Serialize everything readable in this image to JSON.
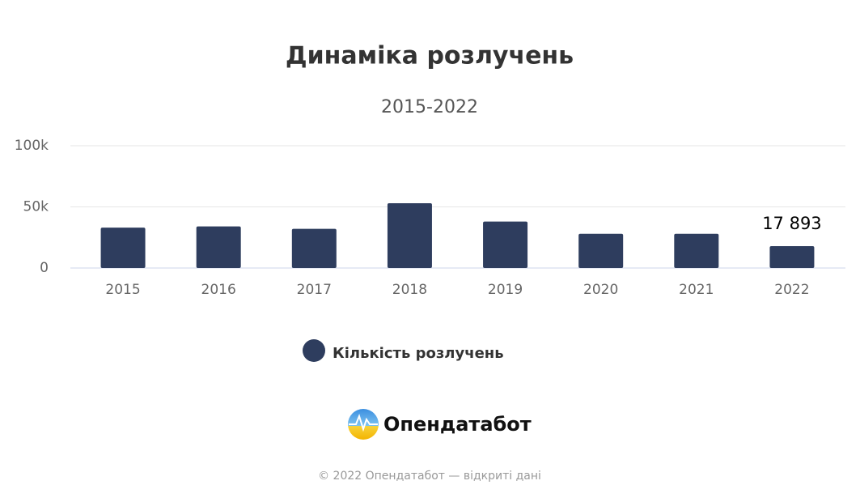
{
  "chart_data": {
    "type": "bar",
    "title": "Динаміка розлучень",
    "subtitle": "2015-2022",
    "categories": [
      "2015",
      "2016",
      "2017",
      "2018",
      "2019",
      "2020",
      "2021",
      "2022"
    ],
    "series": [
      {
        "name": "Кількість розлучень",
        "color": "#2e3d5e",
        "values": [
          33000,
          34000,
          32000,
          53000,
          38000,
          28000,
          28000,
          17893
        ],
        "value_labels": [
          null,
          null,
          null,
          null,
          null,
          null,
          null,
          "17 893"
        ]
      }
    ],
    "ylim": [
      0,
      100000
    ],
    "yticks": [
      0,
      {
        "value": 50000,
        "label": "50k"
      },
      {
        "value": 100000,
        "label": "100k"
      }
    ],
    "grid": true
  },
  "logo": "Опендатабот",
  "footer": "© 2022 Опендатабот — відкриті дані"
}
